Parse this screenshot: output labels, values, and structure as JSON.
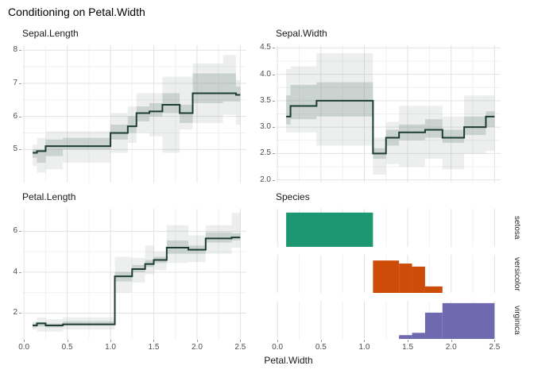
{
  "title": "Conditioning on Petal.Width",
  "x_axis_label": "Petal.Width",
  "theme": {
    "background": "#ffffff",
    "median_line_color": "#1d3c35",
    "band_inner_color": "#7d928c",
    "band_outer_color": "#94a49f",
    "grid_major_color": "#e2e2e2",
    "grid_minor_color": "#f1f1f1",
    "tick_text_color": "#4d4d4d",
    "setosa_color": "#1d9771",
    "versicolor_color": "#cc4c08",
    "virginica_color": "#6f6ab0"
  },
  "chart_data": [
    {
      "id": "sepal-length",
      "type": "line",
      "style": "step median with quantile bands",
      "title": "Sepal.Length",
      "x_variable": "Petal.Width",
      "xlim": [
        -0.02,
        2.57
      ],
      "ylim": [
        4.0,
        8.15
      ],
      "x_ticks": [
        0,
        0.5,
        1,
        1.5,
        2,
        2.5
      ],
      "x_tick_labels": [
        "0.0",
        "0.5",
        "1.0",
        "1.5",
        "2.0",
        "2.5"
      ],
      "show_x_tick_labels": false,
      "y_ticks": [
        5,
        6,
        7,
        8
      ],
      "y_tick_labels": [
        "5",
        "6",
        "7",
        "8"
      ],
      "segment_format": [
        "x_start",
        "x_end",
        "median",
        "q25",
        "q75",
        "lower",
        "upper"
      ],
      "segments": [
        [
          0.1,
          0.15,
          4.9,
          4.75,
          5.0,
          4.5,
          5.15
        ],
        [
          0.15,
          0.25,
          4.95,
          4.6,
          5.0,
          4.3,
          5.35
        ],
        [
          0.25,
          0.45,
          5.1,
          4.8,
          5.3,
          4.4,
          5.55
        ],
        [
          0.45,
          1.0,
          5.1,
          5.0,
          5.35,
          4.6,
          5.55
        ],
        [
          1.0,
          1.2,
          5.5,
          5.3,
          5.75,
          4.9,
          6.1
        ],
        [
          1.2,
          1.3,
          5.7,
          5.5,
          6.0,
          5.2,
          6.3
        ],
        [
          1.3,
          1.45,
          6.1,
          5.85,
          6.3,
          5.5,
          6.7
        ],
        [
          1.45,
          1.6,
          6.15,
          6.0,
          6.4,
          5.4,
          6.7
        ],
        [
          1.6,
          1.8,
          6.35,
          6.1,
          6.7,
          4.9,
          7.2
        ],
        [
          1.8,
          1.95,
          6.1,
          5.8,
          6.35,
          5.6,
          7.2
        ],
        [
          1.95,
          2.3,
          6.7,
          6.4,
          7.3,
          5.8,
          7.6
        ],
        [
          2.3,
          2.45,
          6.7,
          6.45,
          7.3,
          6.05,
          7.85
        ],
        [
          2.45,
          2.5,
          6.65,
          6.45,
          6.9,
          5.75,
          7.1
        ]
      ]
    },
    {
      "id": "sepal-width",
      "type": "line",
      "style": "step median with quantile bands",
      "title": "Sepal.Width",
      "x_variable": "Petal.Width",
      "xlim": [
        -0.02,
        2.57
      ],
      "ylim": [
        1.95,
        4.55
      ],
      "x_ticks": [
        0,
        0.5,
        1,
        1.5,
        2,
        2.5
      ],
      "x_tick_labels": [
        "0.0",
        "0.5",
        "1.0",
        "1.5",
        "2.0",
        "2.5"
      ],
      "show_x_tick_labels": false,
      "y_ticks": [
        2,
        2.5,
        3,
        3.5,
        4,
        4.5
      ],
      "y_tick_labels": [
        "2.0",
        "2.5",
        "3.0",
        "3.5",
        "4.0",
        "4.5"
      ],
      "segment_format": [
        "x_start",
        "x_end",
        "median",
        "q25",
        "q75",
        "lower",
        "upper"
      ],
      "segments": [
        [
          0.1,
          0.15,
          3.2,
          3.05,
          3.6,
          2.9,
          4.1
        ],
        [
          0.15,
          0.45,
          3.4,
          3.15,
          3.8,
          2.9,
          4.15
        ],
        [
          0.45,
          1.1,
          3.5,
          3.2,
          3.85,
          2.65,
          4.4
        ],
        [
          1.1,
          1.25,
          2.5,
          2.4,
          2.6,
          2.1,
          2.8
        ],
        [
          1.25,
          1.4,
          2.8,
          2.65,
          2.95,
          2.3,
          3.1
        ],
        [
          1.4,
          1.7,
          2.9,
          2.75,
          3.05,
          2.25,
          3.4
        ],
        [
          1.7,
          1.9,
          2.95,
          2.8,
          3.15,
          2.4,
          3.4
        ],
        [
          1.9,
          2.15,
          2.8,
          2.7,
          2.95,
          2.2,
          3.2
        ],
        [
          2.15,
          2.4,
          3.0,
          2.85,
          3.2,
          2.5,
          3.6
        ],
        [
          2.4,
          2.5,
          3.2,
          3.0,
          3.3,
          2.55,
          3.6
        ]
      ]
    },
    {
      "id": "petal-length",
      "type": "line",
      "style": "step median with quantile bands",
      "title": "Petal.Length",
      "x_variable": "Petal.Width",
      "xlim": [
        -0.02,
        2.57
      ],
      "ylim": [
        0.7,
        7.1
      ],
      "x_ticks": [
        0,
        0.5,
        1,
        1.5,
        2,
        2.5
      ],
      "x_tick_labels": [
        "0.0",
        "0.5",
        "1.0",
        "1.5",
        "2.0",
        "2.5"
      ],
      "show_x_tick_labels": true,
      "y_ticks": [
        2,
        4,
        6
      ],
      "y_tick_labels": [
        "2",
        "4",
        "6"
      ],
      "segment_format": [
        "x_start",
        "x_end",
        "median",
        "q25",
        "q75",
        "lower",
        "upper"
      ],
      "segments": [
        [
          0.1,
          0.15,
          1.4,
          1.3,
          1.5,
          1.2,
          1.6
        ],
        [
          0.15,
          0.25,
          1.5,
          1.35,
          1.55,
          1.1,
          1.8
        ],
        [
          0.25,
          0.45,
          1.4,
          1.3,
          1.5,
          1.1,
          1.7
        ],
        [
          0.45,
          1.05,
          1.45,
          1.4,
          1.6,
          1.2,
          1.8
        ],
        [
          1.05,
          1.25,
          3.8,
          3.55,
          4.0,
          3.0,
          4.75
        ],
        [
          1.25,
          1.4,
          4.15,
          4.0,
          4.35,
          3.5,
          4.7
        ],
        [
          1.4,
          1.5,
          4.4,
          4.25,
          4.6,
          3.9,
          5.3
        ],
        [
          1.5,
          1.65,
          4.6,
          4.45,
          4.75,
          4.1,
          5.0
        ],
        [
          1.65,
          1.9,
          5.2,
          4.9,
          5.55,
          4.45,
          6.3
        ],
        [
          1.9,
          2.1,
          5.1,
          4.9,
          5.3,
          4.5,
          5.8
        ],
        [
          2.1,
          2.4,
          5.65,
          5.45,
          5.95,
          4.9,
          6.3
        ],
        [
          2.4,
          2.5,
          5.7,
          5.55,
          5.9,
          5.2,
          6.9
        ]
      ]
    },
    {
      "id": "species",
      "type": "bar",
      "style": "faceted histogram by species",
      "title": "Species",
      "x_variable": "Petal.Width",
      "xlim": [
        -0.02,
        2.57
      ],
      "x_ticks": [
        0,
        0.5,
        1,
        1.5,
        2,
        2.5
      ],
      "x_tick_labels": [
        "0.0",
        "0.5",
        "1.0",
        "1.5",
        "2.0",
        "2.5"
      ],
      "show_x_tick_labels": true,
      "bar_format": [
        "x_start",
        "x_end",
        "height_fraction"
      ],
      "facets": [
        {
          "label": "setosa",
          "color": "#1d9771",
          "bars": [
            [
              0.1,
              1.1,
              0.9
            ]
          ]
        },
        {
          "label": "versicolor",
          "color": "#cc4c08",
          "bars": [
            [
              1.1,
              1.4,
              0.85
            ],
            [
              1.4,
              1.55,
              0.77
            ],
            [
              1.55,
              1.7,
              0.69
            ],
            [
              1.7,
              1.9,
              0.17
            ]
          ]
        },
        {
          "label": "virginica",
          "color": "#6f6ab0",
          "bars": [
            [
              1.4,
              1.55,
              0.1
            ],
            [
              1.55,
              1.7,
              0.16
            ],
            [
              1.7,
              1.9,
              0.69
            ],
            [
              1.9,
              2.5,
              0.94
            ]
          ]
        }
      ]
    }
  ]
}
